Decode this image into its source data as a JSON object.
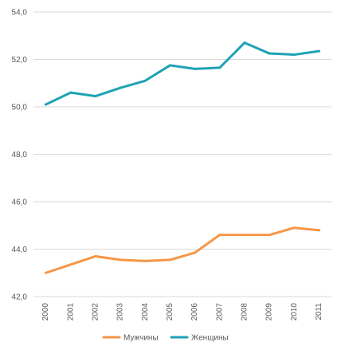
{
  "chart_data": {
    "type": "line",
    "title": "",
    "xlabel": "",
    "ylabel": "",
    "x": [
      "2000",
      "2001",
      "2002",
      "2003",
      "2004",
      "2005",
      "2006",
      "2007",
      "2008",
      "2009",
      "2010",
      "2011"
    ],
    "y_ticks": [
      "42,0",
      "44,0",
      "46,0",
      "48,0",
      "50,0",
      "52,0",
      "54,0"
    ],
    "ylim": [
      42,
      54
    ],
    "y_tick_step": 2,
    "grid": true,
    "legend_position": "bottom",
    "series": [
      {
        "name": "Мужчины",
        "color": "#F79646",
        "values": [
          43.0,
          43.35,
          43.7,
          43.55,
          43.5,
          43.55,
          43.85,
          44.6,
          44.6,
          44.6,
          44.9,
          44.8
        ]
      },
      {
        "name": "Женщины",
        "color": "#1FA2B5",
        "values": [
          50.1,
          50.6,
          50.45,
          50.8,
          51.1,
          51.75,
          51.6,
          51.65,
          52.7,
          52.25,
          52.2,
          52.35
        ]
      }
    ]
  }
}
